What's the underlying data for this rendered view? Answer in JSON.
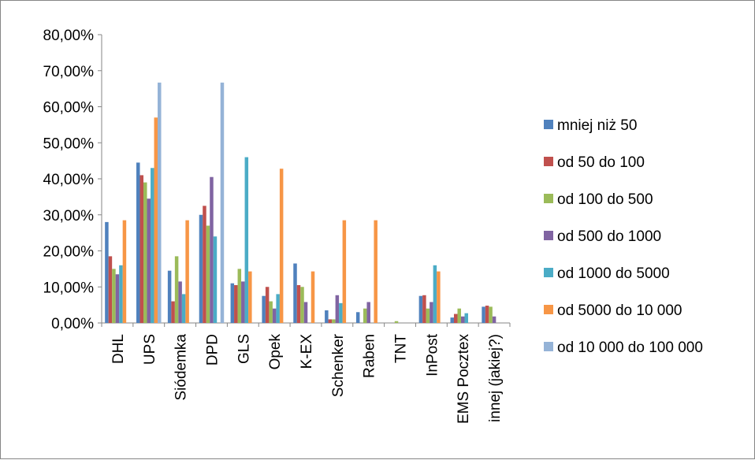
{
  "chart_data": {
    "type": "bar",
    "title": "",
    "xlabel": "",
    "ylabel": "",
    "ylim": [
      0,
      0.8
    ],
    "y_ticks": [
      "0,00%",
      "10,00%",
      "20,00%",
      "30,00%",
      "40,00%",
      "50,00%",
      "60,00%",
      "70,00%",
      "80,00%"
    ],
    "grid": false,
    "legend_position": "right",
    "categories": [
      "DHL",
      "UPS",
      "Siódemka",
      "DPD",
      "GLS",
      "Opek",
      "K-EX",
      "Schenker",
      "Raben",
      "TNT",
      "InPost",
      "EMS Pocztex",
      "innej (jakiej?)"
    ],
    "series": [
      {
        "name": "mniej niż 50",
        "color": "#4F81BD",
        "values": [
          0.28,
          0.445,
          0.145,
          0.3,
          0.11,
          0.075,
          0.165,
          0.035,
          0.03,
          0.0,
          0.075,
          0.015,
          0.045
        ]
      },
      {
        "name": "od 50 do 100",
        "color": "#C0504D",
        "values": [
          0.185,
          0.41,
          0.06,
          0.325,
          0.105,
          0.1,
          0.105,
          0.01,
          0.0,
          0.0,
          0.077,
          0.025,
          0.048
        ]
      },
      {
        "name": "od 100 do 500",
        "color": "#9BBB59",
        "values": [
          0.15,
          0.39,
          0.185,
          0.27,
          0.15,
          0.06,
          0.1,
          0.01,
          0.04,
          0.005,
          0.04,
          0.04,
          0.045
        ]
      },
      {
        "name": "od 500 do 1000",
        "color": "#8064A2",
        "values": [
          0.135,
          0.345,
          0.115,
          0.405,
          0.115,
          0.04,
          0.058,
          0.077,
          0.058,
          0.0,
          0.058,
          0.018,
          0.018
        ]
      },
      {
        "name": "od 1000 do 5000",
        "color": "#4BACC6",
        "values": [
          0.16,
          0.43,
          0.08,
          0.24,
          0.46,
          0.08,
          0.0,
          0.055,
          0.0,
          0.0,
          0.16,
          0.027,
          0.0
        ]
      },
      {
        "name": "od 5000 do 10 000",
        "color": "#F79646",
        "values": [
          0.285,
          0.57,
          0.285,
          0.0,
          0.143,
          0.428,
          0.143,
          0.285,
          0.285,
          0.0,
          0.143,
          0.0,
          0.0
        ]
      },
      {
        "name": "od 10 000 do 100 000",
        "color": "#95B3D7",
        "values": [
          0.0,
          0.667,
          0.0,
          0.667,
          0.0,
          0.0,
          0.0,
          0.0,
          0.0,
          0.0,
          0.0,
          0.0,
          0.0
        ]
      }
    ]
  }
}
